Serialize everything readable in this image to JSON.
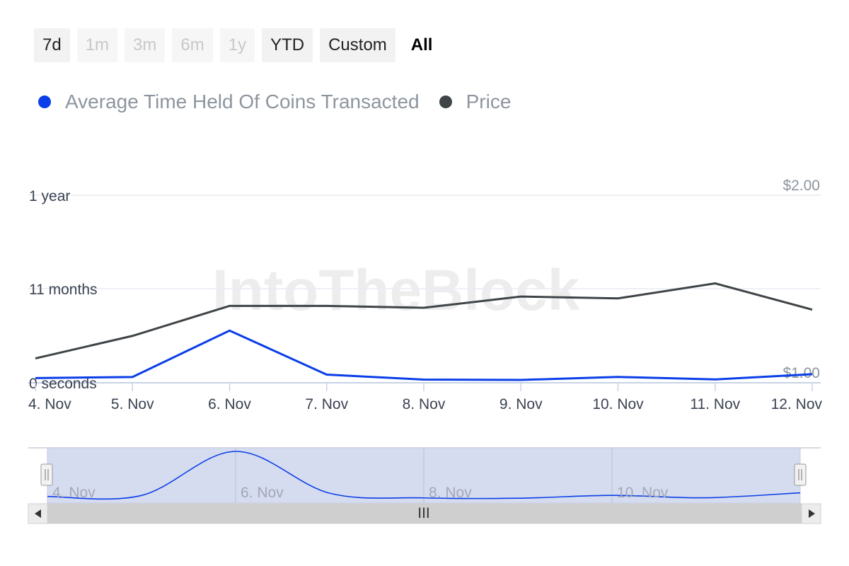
{
  "range_selector": {
    "buttons": [
      {
        "label": "7d",
        "state": "enabled"
      },
      {
        "label": "1m",
        "state": "disabled"
      },
      {
        "label": "3m",
        "state": "disabled"
      },
      {
        "label": "6m",
        "state": "disabled"
      },
      {
        "label": "1y",
        "state": "disabled"
      },
      {
        "label": "YTD",
        "state": "enabled"
      },
      {
        "label": "Custom",
        "state": "enabled"
      },
      {
        "label": "All",
        "state": "selected"
      }
    ]
  },
  "legend": {
    "items": [
      {
        "label": "Average Time Held Of Coins Transacted",
        "color": "#0a3ee8"
      },
      {
        "label": "Price",
        "color": "#3f4447"
      }
    ]
  },
  "watermark": "IntoTheBlock",
  "colors": {
    "avg_time_line": "#0a3ee8",
    "price_line": "#3f4447",
    "gridline": "#e8ecf2",
    "navigator_fill": "#d6dcef"
  },
  "chart_data": {
    "type": "line",
    "categories": [
      "4. Nov",
      "5. Nov",
      "6. Nov",
      "7. Nov",
      "8. Nov",
      "9. Nov",
      "10. Nov",
      "11. Nov",
      "12. Nov"
    ],
    "series": [
      {
        "name": "Average Time Held Of Coins Transacted",
        "axis": "left",
        "unit": "months",
        "values": [
          0.55,
          0.67,
          6.1,
          0.95,
          0.37,
          0.33,
          0.68,
          0.39,
          1.0
        ]
      },
      {
        "name": "Price",
        "axis": "right",
        "unit": "USD",
        "values": [
          1.13,
          1.25,
          1.41,
          1.41,
          1.4,
          1.46,
          1.45,
          1.53,
          1.39
        ]
      }
    ],
    "left_axis": {
      "ticks": [
        {
          "value": 0,
          "label": "0 seconds"
        },
        {
          "value": 11,
          "label": "11 months"
        },
        {
          "value": 12,
          "label": "1 year"
        }
      ]
    },
    "right_axis": {
      "ticks": [
        {
          "value": 1.0,
          "label": "$1.00"
        },
        {
          "value": 2.0,
          "label": "$2.00"
        }
      ],
      "ylim": [
        1.0,
        2.0
      ]
    },
    "navigator": {
      "labels": [
        "4. Nov",
        "6. Nov",
        "8. Nov",
        "10. Nov"
      ],
      "scrollbar_grip": "III"
    },
    "grid": true
  }
}
